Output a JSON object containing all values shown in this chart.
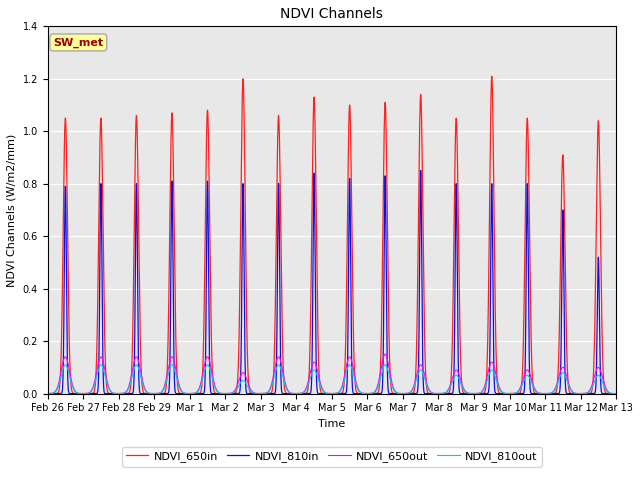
{
  "title": "NDVI Channels",
  "ylabel": "NDVI Channels (W/m2/mm)",
  "xlabel": "Time",
  "annotation_text": "SW_met",
  "annotation_bg": "#FFFF99",
  "annotation_border": "#AAAAAA",
  "ylim": [
    0,
    1.4
  ],
  "legend_labels": [
    "NDVI_650in",
    "NDVI_810in",
    "NDVI_650out",
    "NDVI_810out"
  ],
  "line_colors": [
    "#FF2020",
    "#1010DD",
    "#FF00FF",
    "#00CCDD"
  ],
  "fig_bg": "#FFFFFF",
  "plot_bg": "#E8E8E8",
  "num_days": 16,
  "peaks_650in": [
    1.05,
    1.05,
    1.06,
    1.07,
    1.08,
    1.2,
    1.06,
    1.13,
    1.1,
    1.11,
    1.14,
    1.05,
    1.21,
    1.05,
    0.91,
    1.04
  ],
  "peaks_810in": [
    0.79,
    0.8,
    0.8,
    0.81,
    0.81,
    0.8,
    0.8,
    0.84,
    0.82,
    0.83,
    0.85,
    0.8,
    0.8,
    0.8,
    0.7,
    0.52
  ],
  "peaks_650out": [
    0.14,
    0.14,
    0.14,
    0.14,
    0.14,
    0.08,
    0.14,
    0.12,
    0.14,
    0.15,
    0.11,
    0.09,
    0.12,
    0.09,
    0.1,
    0.1
  ],
  "peaks_810out": [
    0.11,
    0.11,
    0.11,
    0.11,
    0.11,
    0.05,
    0.11,
    0.09,
    0.11,
    0.11,
    0.09,
    0.07,
    0.09,
    0.07,
    0.08,
    0.07
  ],
  "sigma_650in_hours": 2.5,
  "sigma_810in_hours": 1.5,
  "sigma_650out_hours": 3.5,
  "sigma_810out_hours": 3.5,
  "power_650in": 3.0,
  "power_810in": 4.5,
  "power_650out": 1.5,
  "power_810out": 1.5,
  "peak_hour": 12.0
}
